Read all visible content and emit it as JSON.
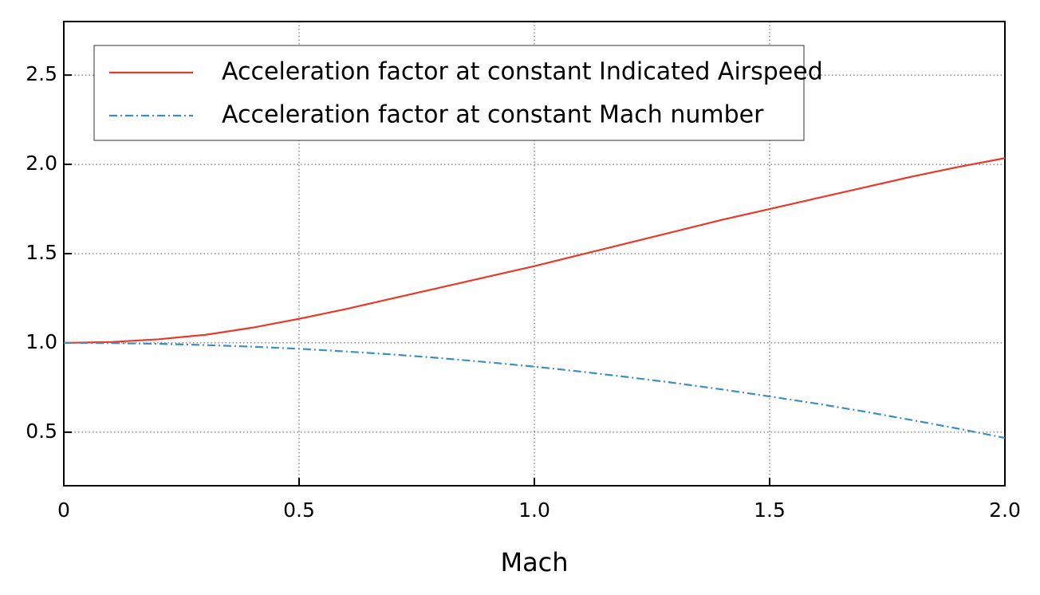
{
  "chart_data": {
    "type": "line",
    "x_label": "Mach",
    "x": [
      0,
      0.1,
      0.2,
      0.3,
      0.4,
      0.5,
      0.6,
      0.7,
      0.8,
      0.9,
      1.0,
      1.1,
      1.2,
      1.3,
      1.4,
      1.5,
      1.6,
      1.7,
      1.8,
      1.9,
      2.0
    ],
    "series": [
      {
        "name": "Acceleration factor at constant Indicated Airspeed",
        "color": "#e8392a",
        "dash": "solid",
        "values": [
          1.0,
          1.005,
          1.02,
          1.045,
          1.085,
          1.135,
          1.19,
          1.25,
          1.31,
          1.37,
          1.43,
          1.495,
          1.56,
          1.625,
          1.69,
          1.75,
          1.81,
          1.87,
          1.93,
          1.985,
          2.035
        ]
      },
      {
        "name": "Acceleration factor at constant Mach number",
        "color": "#3a8fc4",
        "dash": "dashdot",
        "values": [
          1.0,
          0.999,
          0.995,
          0.988,
          0.979,
          0.967,
          0.952,
          0.935,
          0.915,
          0.892,
          0.867,
          0.839,
          0.808,
          0.775,
          0.739,
          0.7,
          0.66,
          0.616,
          0.569,
          0.52,
          0.468
        ]
      }
    ],
    "xlim": [
      0,
      2
    ],
    "xticks": [
      0,
      0.5,
      {
        "value": 1,
        "label": "1.0"
      },
      {
        "value": 1.5,
        "label": "1.5"
      },
      {
        "value": 2,
        "label": "2.0"
      }
    ],
    "ylim": [
      0.2,
      2.8
    ],
    "yticks": [
      0.5,
      {
        "value": 1,
        "label": "1.0"
      },
      1.5,
      {
        "value": 2,
        "label": "2.0"
      },
      2.5
    ],
    "grid": true,
    "legend": "upper-left"
  }
}
